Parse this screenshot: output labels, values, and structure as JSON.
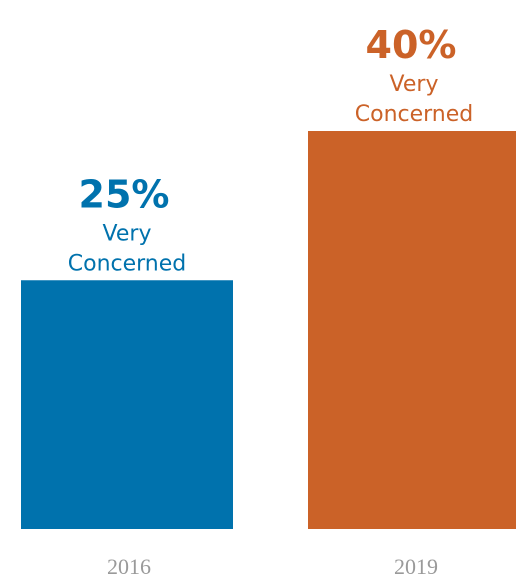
{
  "chart_data": {
    "type": "bar",
    "categories": [
      "2016",
      "2019"
    ],
    "values": [
      25,
      40
    ],
    "data_labels": [
      {
        "value": "25%",
        "text_line1": "Very",
        "text_line2": "Concerned"
      },
      {
        "value": "40%",
        "text_line1": "Very",
        "text_line2": "Concerned"
      }
    ],
    "colors": [
      "#0072ad",
      "#cb6228"
    ],
    "ylim": [
      0,
      40
    ],
    "title": "",
    "xlabel": "",
    "ylabel": "",
    "grid": false,
    "legend": "none"
  }
}
